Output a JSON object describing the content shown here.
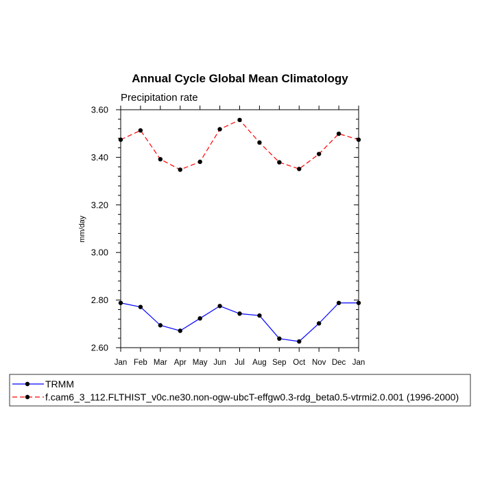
{
  "chart_data": {
    "type": "line",
    "title": "Annual Cycle Global Mean Climatology",
    "subtitle": "Precipitation rate",
    "xlabel": "",
    "ylabel": "mm/day",
    "categories": [
      "Jan",
      "Feb",
      "Mar",
      "Apr",
      "May",
      "Jun",
      "Jul",
      "Aug",
      "Sep",
      "Oct",
      "Nov",
      "Dec",
      "Jan"
    ],
    "ylim": [
      2.6,
      3.6
    ],
    "yticks": [
      "2.60",
      "2.80",
      "3.00",
      "3.20",
      "3.40",
      "3.60"
    ],
    "series": [
      {
        "name": "TRMM",
        "color": "#0000ff",
        "dash": "solid",
        "values": [
          2.788,
          2.771,
          2.694,
          2.671,
          2.723,
          2.775,
          2.743,
          2.735,
          2.638,
          2.626,
          2.702,
          2.788,
          2.788
        ]
      },
      {
        "name": "f.cam6_3_112.FLTHIST_v0c.ne30.non-ogw-ubcT-effgw0.3-rdg_beta0.5-vtrmi2.0.001 (1996-2000)",
        "color": "#ff0000",
        "dash": "dashed",
        "values": [
          3.474,
          3.513,
          3.392,
          3.348,
          3.381,
          3.518,
          3.557,
          3.462,
          3.379,
          3.351,
          3.414,
          3.499,
          3.474
        ]
      }
    ],
    "legend_position": "bottom",
    "grid": false
  }
}
